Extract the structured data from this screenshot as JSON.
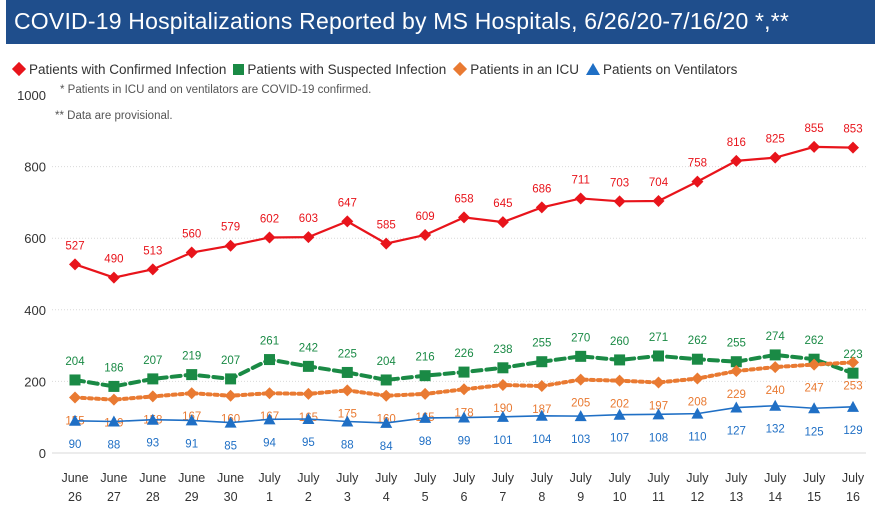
{
  "title": "COVID-19 Hospitalizations Reported by MS Hospitals, 6/26/20-7/16/20 *,**",
  "notes": [
    "* Patients in ICU and on ventilators are COVID-19 confirmed.",
    "** Data are provisional."
  ],
  "colors": {
    "title_bg": "#1f4e8c",
    "confirmed": "#e8141b",
    "suspected": "#1a8a45",
    "icu": "#e97a32",
    "ventilators": "#1f6fc5"
  },
  "chart_data": {
    "type": "line",
    "ylim": [
      0,
      1000
    ],
    "yticks": [
      "0",
      "200",
      "400",
      "600",
      "800",
      "1000"
    ],
    "grid": true,
    "legend_position": "top",
    "categories": [
      [
        "June",
        "26"
      ],
      [
        "June",
        "27"
      ],
      [
        "June",
        "28"
      ],
      [
        "June",
        "29"
      ],
      [
        "June",
        "30"
      ],
      [
        "July",
        "1"
      ],
      [
        "July",
        "2"
      ],
      [
        "July",
        "3"
      ],
      [
        "July",
        "4"
      ],
      [
        "July",
        "5"
      ],
      [
        "July",
        "6"
      ],
      [
        "July",
        "7"
      ],
      [
        "July",
        "8"
      ],
      [
        "July",
        "9"
      ],
      [
        "July",
        "10"
      ],
      [
        "July",
        "11"
      ],
      [
        "July",
        "12"
      ],
      [
        "July",
        "13"
      ],
      [
        "July",
        "14"
      ],
      [
        "July",
        "15"
      ],
      [
        "July",
        "16"
      ]
    ],
    "series": [
      {
        "name": "Patients with Confirmed Infection",
        "marker": "diamond",
        "line": "solid",
        "values": [
          527,
          490,
          513,
          560,
          579,
          602,
          603,
          647,
          585,
          609,
          658,
          645,
          686,
          711,
          703,
          704,
          758,
          816,
          825,
          855,
          853
        ]
      },
      {
        "name": "Patients with Suspected Infection",
        "marker": "square",
        "line": "dashed",
        "values": [
          204,
          186,
          207,
          219,
          207,
          261,
          242,
          225,
          204,
          216,
          226,
          238,
          255,
          270,
          260,
          271,
          262,
          255,
          274,
          262,
          223
        ]
      },
      {
        "name": "Patients in an ICU",
        "marker": "diamond",
        "line": "dotted",
        "values": [
          155,
          149,
          158,
          167,
          160,
          167,
          165,
          175,
          160,
          165,
          178,
          190,
          187,
          205,
          202,
          197,
          208,
          229,
          240,
          247,
          253
        ]
      },
      {
        "name": "Patients on Ventilators",
        "marker": "triangle",
        "line": "solid",
        "values": [
          90,
          88,
          93,
          91,
          85,
          94,
          95,
          88,
          84,
          98,
          99,
          101,
          104,
          103,
          107,
          108,
          110,
          127,
          132,
          125,
          129
        ]
      }
    ]
  }
}
